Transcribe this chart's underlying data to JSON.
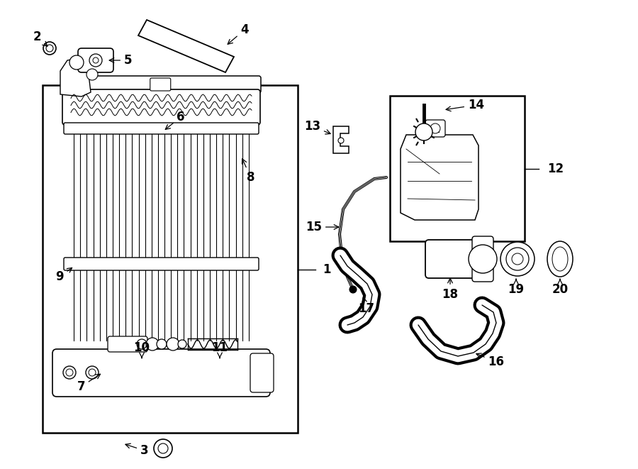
{
  "bg_color": "#ffffff",
  "lc": "#000000",
  "fig_width": 9.0,
  "fig_height": 6.61,
  "dpi": 100,
  "fs": 12
}
